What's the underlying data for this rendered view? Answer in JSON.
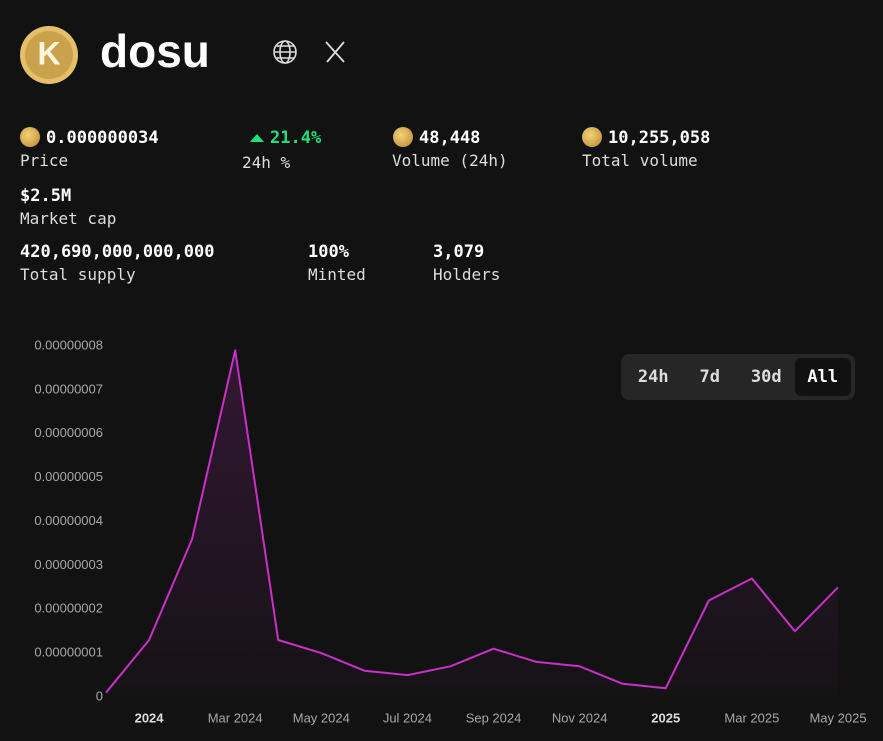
{
  "header": {
    "name": "dosu"
  },
  "stats": [
    {
      "value": "0.000000034",
      "label": "Price"
    },
    {
      "value": "21.4%",
      "label": "24h %"
    },
    {
      "value": "48,448",
      "label": "Volume (24h)"
    },
    {
      "value": "10,255,058",
      "label": "Total volume"
    },
    {
      "value": "$2.5M",
      "label": "Market cap"
    },
    {
      "value": "420,690,000,000,000",
      "label": "Total supply"
    },
    {
      "value": "100%",
      "label": "Minted"
    },
    {
      "value": "3,079",
      "label": "Holders"
    }
  ],
  "range_buttons": [
    "24h",
    "7d",
    "30d",
    "All"
  ],
  "chart_data": {
    "type": "line",
    "x": [
      "2023-12",
      "2024-01",
      "2024-02",
      "2024-03",
      "2024-04",
      "2024-05",
      "2024-06",
      "2024-07",
      "2024-08",
      "2024-09",
      "2024-10",
      "2024-11",
      "2024-12",
      "2025-01",
      "2025-02",
      "2025-03",
      "2025-04",
      "2025-05"
    ],
    "values": [
      1e-09,
      1.3e-08,
      3.6e-08,
      7.9e-08,
      1.3e-08,
      1e-08,
      6e-09,
      5e-09,
      7e-09,
      1.1e-08,
      8e-09,
      7e-09,
      3e-09,
      2e-09,
      2.2e-08,
      2.7e-08,
      1.5e-08,
      2.5e-08
    ],
    "color": "#c930c9",
    "xlim": [
      "2023-12",
      "2025-05"
    ],
    "xticks": [
      {
        "value": "2024-01",
        "label": "2024"
      },
      {
        "value": "2024-03",
        "label": "Mar 2024"
      },
      {
        "value": "2024-05",
        "label": "May 2024"
      },
      {
        "value": "2024-07",
        "label": "Jul 2024"
      },
      {
        "value": "2024-09",
        "label": "Sep 2024"
      },
      {
        "value": "2024-11",
        "label": "Nov 2024"
      },
      {
        "value": "2025-01",
        "label": "2025"
      },
      {
        "value": "2025-03",
        "label": "Mar 2025"
      },
      {
        "value": "2025-05",
        "label": "May 2025"
      }
    ],
    "ylim": [
      0,
      8e-08
    ],
    "yticks": [
      0,
      {
        "value": 1e-08,
        "label": "0.00000001"
      },
      {
        "value": 2e-08,
        "label": "0.00000002"
      },
      {
        "value": 3e-08,
        "label": "0.00000003"
      },
      {
        "value": 4e-08,
        "label": "0.00000004"
      },
      {
        "value": 5e-08,
        "label": "0.00000005"
      },
      {
        "value": 6e-08,
        "label": "0.00000006"
      },
      {
        "value": 7e-08,
        "label": "0.00000007"
      },
      {
        "value": 8e-08,
        "label": "0.00000008"
      }
    ],
    "grid": false
  }
}
